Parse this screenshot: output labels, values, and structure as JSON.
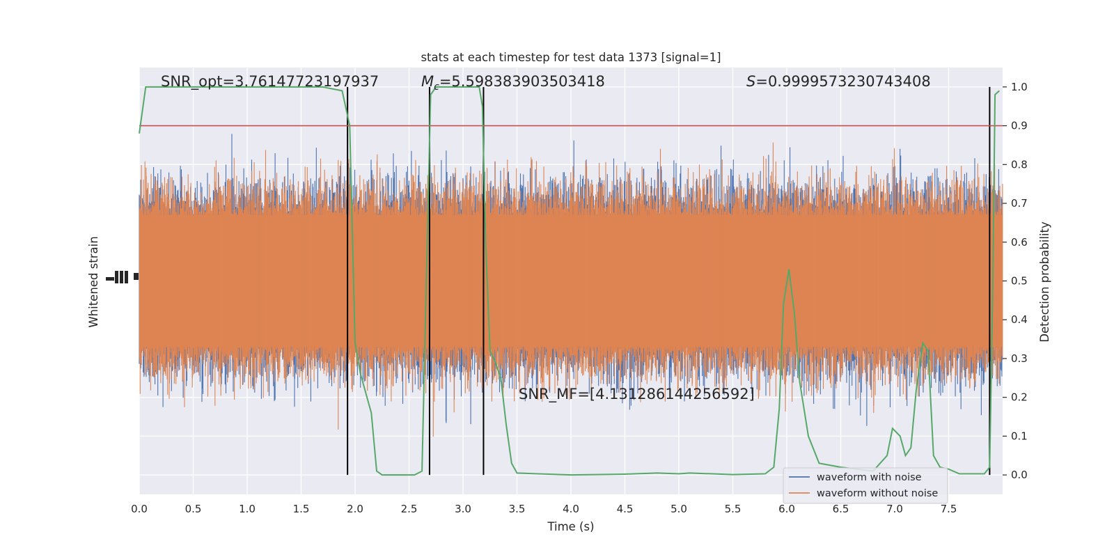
{
  "chart_data": {
    "type": "line",
    "title": "stats at each timestep for test data 1373 [signal=1]",
    "xlabel": "Time (s)",
    "ylabel_left": "Whitened strain",
    "ylabel_right": "Detection probability",
    "xlim": [
      0.0,
      8.0
    ],
    "ylim_right": [
      -0.05,
      1.05
    ],
    "x_ticks": [
      "0.0",
      "0.5",
      "1.0",
      "1.5",
      "2.0",
      "2.5",
      "3.0",
      "3.5",
      "4.0",
      "4.5",
      "5.0",
      "5.5",
      "6.0",
      "6.5",
      "7.0",
      "7.5"
    ],
    "x_tick_values": [
      0.0,
      0.5,
      1.0,
      1.5,
      2.0,
      2.5,
      3.0,
      3.5,
      4.0,
      4.5,
      5.0,
      5.5,
      6.0,
      6.5,
      7.0,
      7.5
    ],
    "y_right_ticks": [
      "0.0",
      "0.1",
      "0.2",
      "0.3",
      "0.4",
      "0.5",
      "0.6",
      "0.7",
      "0.8",
      "0.9",
      "1.0"
    ],
    "y_right_tick_values": [
      0.0,
      0.1,
      0.2,
      0.3,
      0.4,
      0.5,
      0.6,
      0.7,
      0.8,
      0.9,
      1.0
    ],
    "grid": true,
    "legend_position": "bottom-right",
    "annotations": {
      "snr_opt": "SNR_opt=3.76147723197937",
      "mc_symbol": "M",
      "mc_subscript": "c",
      "mc_value": "=5.598383903503418",
      "s_symbol": "S",
      "s_value": "=0.9999573230743408",
      "snr_mf": "SNR_MF=[4.131286144256592]"
    },
    "threshold": 0.9,
    "vertical_lines_x": [
      1.93,
      2.69,
      3.19,
      7.88
    ],
    "series": [
      {
        "name": "waveform with noise",
        "color": "#4c72b0",
        "axis": "left",
        "kind": "noise_band",
        "center": 0.5,
        "half_width": 0.17,
        "spike_max": 0.51
      },
      {
        "name": "waveform without noise",
        "color": "#dd8452",
        "axis": "left",
        "kind": "noise_band",
        "center": 0.5,
        "half_width": 0.17,
        "spike_max": 0.51
      },
      {
        "name": "Detection probability",
        "color": "#55a868",
        "axis": "right",
        "kind": "line",
        "x": [
          0.0,
          0.06,
          0.5,
          1.0,
          1.5,
          1.7,
          1.88,
          1.95,
          2.0,
          2.05,
          2.15,
          2.2,
          2.25,
          2.4,
          2.55,
          2.62,
          2.66,
          2.7,
          2.75,
          2.8,
          3.0,
          3.15,
          3.18,
          3.21,
          3.25,
          3.3,
          3.35,
          3.4,
          3.45,
          3.5,
          4.0,
          4.5,
          4.8,
          5.0,
          5.1,
          5.5,
          5.8,
          5.88,
          5.93,
          5.97,
          6.02,
          6.07,
          6.12,
          6.2,
          6.3,
          6.5,
          6.8,
          6.93,
          6.98,
          7.05,
          7.1,
          7.15,
          7.2,
          7.26,
          7.31,
          7.36,
          7.42,
          7.5,
          7.6,
          7.7,
          7.83,
          7.88,
          7.91,
          7.93,
          7.97
        ],
        "y": [
          0.88,
          1.0,
          1.0,
          1.0,
          1.0,
          1.0,
          0.99,
          0.9,
          0.34,
          0.26,
          0.16,
          0.01,
          0.0,
          0.0,
          0.0,
          0.01,
          0.5,
          0.98,
          1.0,
          1.0,
          1.0,
          1.0,
          0.95,
          0.6,
          0.32,
          0.29,
          0.25,
          0.13,
          0.03,
          0.005,
          0.0,
          0.002,
          0.005,
          0.003,
          0.005,
          0.001,
          0.003,
          0.02,
          0.17,
          0.44,
          0.53,
          0.42,
          0.24,
          0.1,
          0.03,
          0.02,
          0.01,
          0.05,
          0.12,
          0.1,
          0.05,
          0.07,
          0.22,
          0.34,
          0.32,
          0.05,
          0.02,
          0.015,
          0.003,
          0.003,
          0.003,
          0.02,
          0.5,
          0.98,
          0.99
        ]
      }
    ]
  }
}
